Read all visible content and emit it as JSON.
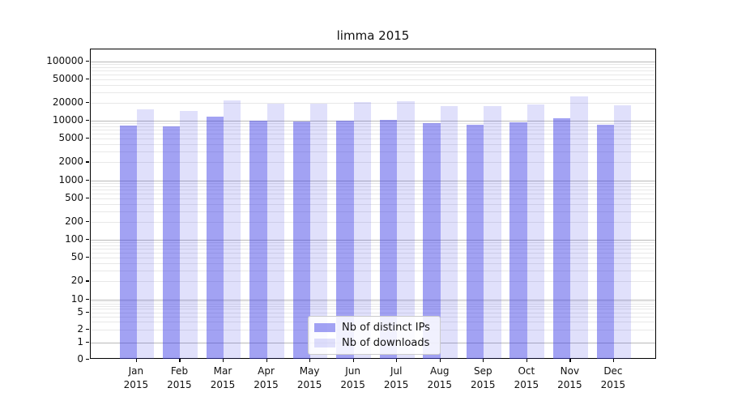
{
  "title": "limma 2015",
  "colors": {
    "ips_fill": "rgba(60,60,230,0.48)",
    "downloads_fill": "rgba(60,60,230,0.16)",
    "ips_hex": "#a6a6f3",
    "downloads_hex": "#dedefb",
    "grid_major": "#b9b9b9",
    "grid_minor": "#e8e8e8",
    "spine": "#000000"
  },
  "legend": {
    "items": [
      {
        "label": "Nb of distinct IPs",
        "series": "ips"
      },
      {
        "label": "Nb of downloads",
        "series": "downloads"
      }
    ]
  },
  "y_axis": {
    "tick_values": [
      0,
      1,
      2,
      5,
      10,
      20,
      50,
      100,
      200,
      500,
      1000,
      2000,
      5000,
      10000,
      20000,
      50000,
      100000
    ],
    "tick_labels": [
      "0",
      "1",
      "2",
      "5",
      "10",
      "20",
      "50",
      "100",
      "200",
      "500",
      "1000",
      "2000",
      "5000",
      "10000",
      "20000",
      "50000",
      "100000"
    ]
  },
  "x_axis": {
    "tick_labels": [
      "Jan 2015",
      "Feb 2015",
      "Mar 2015",
      "Apr 2015",
      "May 2015",
      "Jun 2015",
      "Jul 2015",
      "Aug 2015",
      "Sep 2015",
      "Oct 2015",
      "Nov 2015",
      "Dec 2015"
    ]
  },
  "chart_data": {
    "type": "bar",
    "title": "limma 2015",
    "categories": [
      "Jan 2015",
      "Feb 2015",
      "Mar 2015",
      "Apr 2015",
      "May 2015",
      "Jun 2015",
      "Jul 2015",
      "Aug 2015",
      "Sep 2015",
      "Oct 2015",
      "Nov 2015",
      "Dec 2015"
    ],
    "series": [
      {
        "name": "Nb of distinct IPs",
        "values": [
          8300,
          8000,
          11800,
          10000,
          9800,
          9900,
          10200,
          9200,
          8500,
          9300,
          11000,
          8500
        ]
      },
      {
        "name": "Nb of downloads",
        "values": [
          15600,
          14400,
          22000,
          19300,
          19100,
          20600,
          21200,
          17400,
          17700,
          19000,
          25400,
          18200
        ]
      }
    ],
    "yscale": "log (linear below 1, compressed 1-10)",
    "ylim": [
      0,
      160000
    ],
    "grid": true,
    "legend_position": "lower center"
  }
}
